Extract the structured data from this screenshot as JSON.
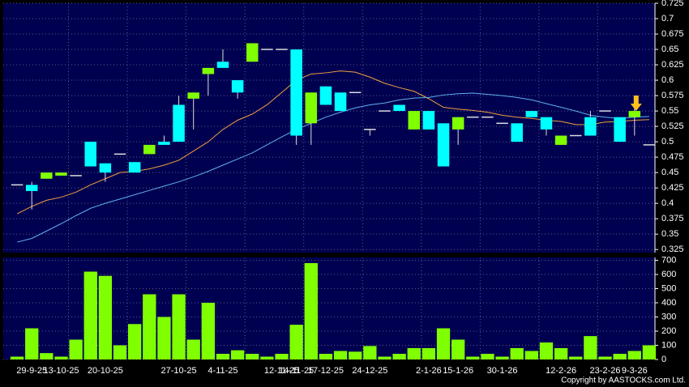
{
  "chart_data": [
    {
      "type": "candlestick",
      "categories": [
        null,
        "29-9-25",
        null,
        "13-10-25",
        null,
        null,
        "20-10-25",
        null,
        null,
        null,
        null,
        "27-10-25",
        null,
        null,
        "4-11-25",
        null,
        null,
        null,
        "12-11-25",
        "14-11-25",
        null,
        "17-12-25",
        null,
        null,
        "24-12-25",
        null,
        null,
        null,
        "2-1-26",
        null,
        "15-1-26",
        null,
        null,
        "30-1-26",
        null,
        null,
        null,
        "12-2-26",
        null,
        null,
        "23-2-26",
        null,
        "9-3-26",
        null
      ],
      "open": [
        0.43,
        0.43,
        0.44,
        0.445,
        0.445,
        0.5,
        0.465,
        0.48,
        0.467,
        0.48,
        0.5,
        0.56,
        0.57,
        0.61,
        0.63,
        0.6,
        0.63,
        0.65,
        0.65,
        0.65,
        0.53,
        0.59,
        0.58,
        0.58,
        0.52,
        0.55,
        0.56,
        0.52,
        0.55,
        0.53,
        0.52,
        0.54,
        0.54,
        0.53,
        0.53,
        0.55,
        0.54,
        0.495,
        0.51,
        0.54,
        0.55,
        0.54,
        0.54,
        0.495
      ],
      "high": [
        0.43,
        0.435,
        0.45,
        0.45,
        0.445,
        0.5,
        0.465,
        0.48,
        0.467,
        0.495,
        0.51,
        0.575,
        0.58,
        0.62,
        0.65,
        0.6,
        0.66,
        0.65,
        0.65,
        0.65,
        0.58,
        0.59,
        0.58,
        0.58,
        0.52,
        0.55,
        0.56,
        0.55,
        0.55,
        0.53,
        0.54,
        0.54,
        0.54,
        0.53,
        0.53,
        0.55,
        0.54,
        0.51,
        0.51,
        0.55,
        0.55,
        0.54,
        0.56,
        0.495
      ],
      "low": [
        0.43,
        0.39,
        0.44,
        0.445,
        0.445,
        0.46,
        0.435,
        0.48,
        0.45,
        0.48,
        0.495,
        0.5,
        0.52,
        0.575,
        0.62,
        0.57,
        0.63,
        0.65,
        0.65,
        0.495,
        0.495,
        0.56,
        0.55,
        0.58,
        0.51,
        0.55,
        0.55,
        0.52,
        0.52,
        0.46,
        0.495,
        0.54,
        0.54,
        0.53,
        0.5,
        0.54,
        0.51,
        0.495,
        0.51,
        0.51,
        0.55,
        0.5,
        0.51,
        0.495
      ],
      "close": [
        0.43,
        0.42,
        0.45,
        0.45,
        0.445,
        0.46,
        0.45,
        0.48,
        0.45,
        0.495,
        0.495,
        0.5,
        0.58,
        0.62,
        0.62,
        0.58,
        0.66,
        0.65,
        0.65,
        0.51,
        0.58,
        0.56,
        0.55,
        0.58,
        0.52,
        0.55,
        0.55,
        0.55,
        0.52,
        0.46,
        0.54,
        0.54,
        0.54,
        0.53,
        0.5,
        0.54,
        0.52,
        0.51,
        0.51,
        0.51,
        0.55,
        0.5,
        0.55,
        0.495
      ],
      "up_color": "#80ff00",
      "down_color": "#00ffff",
      "flat_color": "#dddddd",
      "series": [
        {
          "color": "#f0a040",
          "values": [
            0.383,
            0.395,
            0.405,
            0.41,
            0.418,
            0.43,
            0.44,
            0.45,
            0.452,
            0.456,
            0.462,
            0.47,
            0.485,
            0.5,
            0.52,
            0.535,
            0.545,
            0.56,
            0.58,
            0.6,
            0.61,
            0.612,
            0.615,
            0.613,
            0.605,
            0.595,
            0.588,
            0.582,
            0.57,
            0.556,
            0.553,
            0.551,
            0.548,
            0.543,
            0.54,
            0.538,
            0.535,
            0.533,
            0.528,
            0.528,
            0.532,
            0.533,
            0.535,
            0.536
          ]
        },
        {
          "color": "#60b0f0",
          "values": [
            0.337,
            0.343,
            0.355,
            0.367,
            0.38,
            0.392,
            0.4,
            0.407,
            0.414,
            0.421,
            0.428,
            0.435,
            0.443,
            0.452,
            0.462,
            0.472,
            0.482,
            0.495,
            0.508,
            0.52,
            0.53,
            0.54,
            0.548,
            0.555,
            0.56,
            0.563,
            0.568,
            0.571,
            0.572,
            0.576,
            0.578,
            0.579,
            0.577,
            0.575,
            0.572,
            0.568,
            0.562,
            0.556,
            0.55,
            0.543,
            0.54,
            0.538,
            0.54,
            0.541
          ]
        }
      ],
      "ylim": [
        0.32,
        0.725
      ],
      "yticks": [
        0.325,
        0.35,
        0.375,
        0.4,
        0.425,
        0.45,
        0.475,
        0.5,
        0.525,
        0.55,
        0.575,
        0.6,
        0.625,
        0.65,
        0.675,
        0.7,
        0.725
      ],
      "grid": true
    },
    {
      "type": "bar",
      "values": [
        20,
        220,
        45,
        20,
        140,
        620,
        590,
        100,
        250,
        460,
        300,
        460,
        140,
        400,
        40,
        65,
        40,
        20,
        40,
        245,
        680,
        40,
        60,
        55,
        95,
        20,
        40,
        80,
        80,
        220,
        140,
        20,
        40,
        20,
        80,
        60,
        120,
        80,
        20,
        165,
        20,
        40,
        60,
        100
      ],
      "color": "#80ff00",
      "ylim": [
        0,
        720
      ],
      "yticks": [
        0,
        100,
        200,
        300,
        400,
        500,
        600,
        700
      ],
      "grid": true
    }
  ],
  "copyright": "Copyright by AASTOCKS.com Ltd."
}
